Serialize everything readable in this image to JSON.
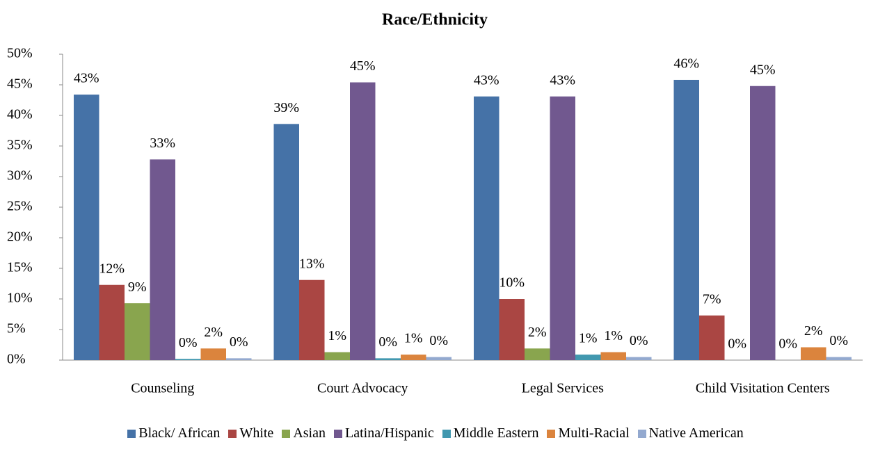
{
  "chart_data": {
    "type": "bar",
    "title": "Race/Ethnicity",
    "categories": [
      "Counseling",
      "Court Advocacy",
      "Legal Services",
      "Child Visitation Centers"
    ],
    "series": [
      {
        "name": "Black/ African",
        "color": "#4572a7",
        "values": [
          43.4,
          38.6,
          43.1,
          45.8
        ],
        "value_labels": [
          "43%",
          "39%",
          "43%",
          "46%"
        ]
      },
      {
        "name": "White",
        "color": "#aa4643",
        "values": [
          12.3,
          13.1,
          10.0,
          7.3
        ],
        "value_labels": [
          "12%",
          "13%",
          "10%",
          "7%"
        ]
      },
      {
        "name": "Asian",
        "color": "#89a54e",
        "values": [
          9.3,
          1.3,
          1.9,
          0
        ],
        "value_labels": [
          "9%",
          "1%",
          "2%",
          "0%"
        ]
      },
      {
        "name": "Latina/Hispanic",
        "color": "#71588f",
        "values": [
          32.8,
          45.4,
          43.1,
          44.8
        ],
        "value_labels": [
          "33%",
          "45%",
          "43%",
          "45%"
        ]
      },
      {
        "name": "Middle Eastern",
        "color": "#4198af",
        "values": [
          0.2,
          0.3,
          0.9,
          0
        ],
        "value_labels": [
          "0%",
          "0%",
          "1%",
          "0%"
        ]
      },
      {
        "name": "Multi-Racial",
        "color": "#db843d",
        "values": [
          1.9,
          0.9,
          1.3,
          2.1
        ],
        "value_labels": [
          "2%",
          "1%",
          "1%",
          "2%"
        ]
      },
      {
        "name": "Native American",
        "color": "#93a9cf",
        "values": [
          0.3,
          0.5,
          0.5,
          0.5
        ],
        "value_labels": [
          "0%",
          "0%",
          "0%",
          "0%"
        ]
      }
    ],
    "ylim": [
      0,
      50
    ],
    "yticks": [
      {
        "value": 0,
        "label": "0%"
      },
      {
        "value": 5,
        "label": "5%"
      },
      {
        "value": 10,
        "label": "10%"
      },
      {
        "value": 15,
        "label": "15%"
      },
      {
        "value": 20,
        "label": "20%"
      },
      {
        "value": 25,
        "label": "25%"
      },
      {
        "value": 30,
        "label": "30%"
      },
      {
        "value": 35,
        "label": "35%"
      },
      {
        "value": 40,
        "label": "40%"
      },
      {
        "value": 45,
        "label": "45%"
      },
      {
        "value": 50,
        "label": "50%"
      }
    ],
    "grid": false,
    "legend": "bottom"
  }
}
